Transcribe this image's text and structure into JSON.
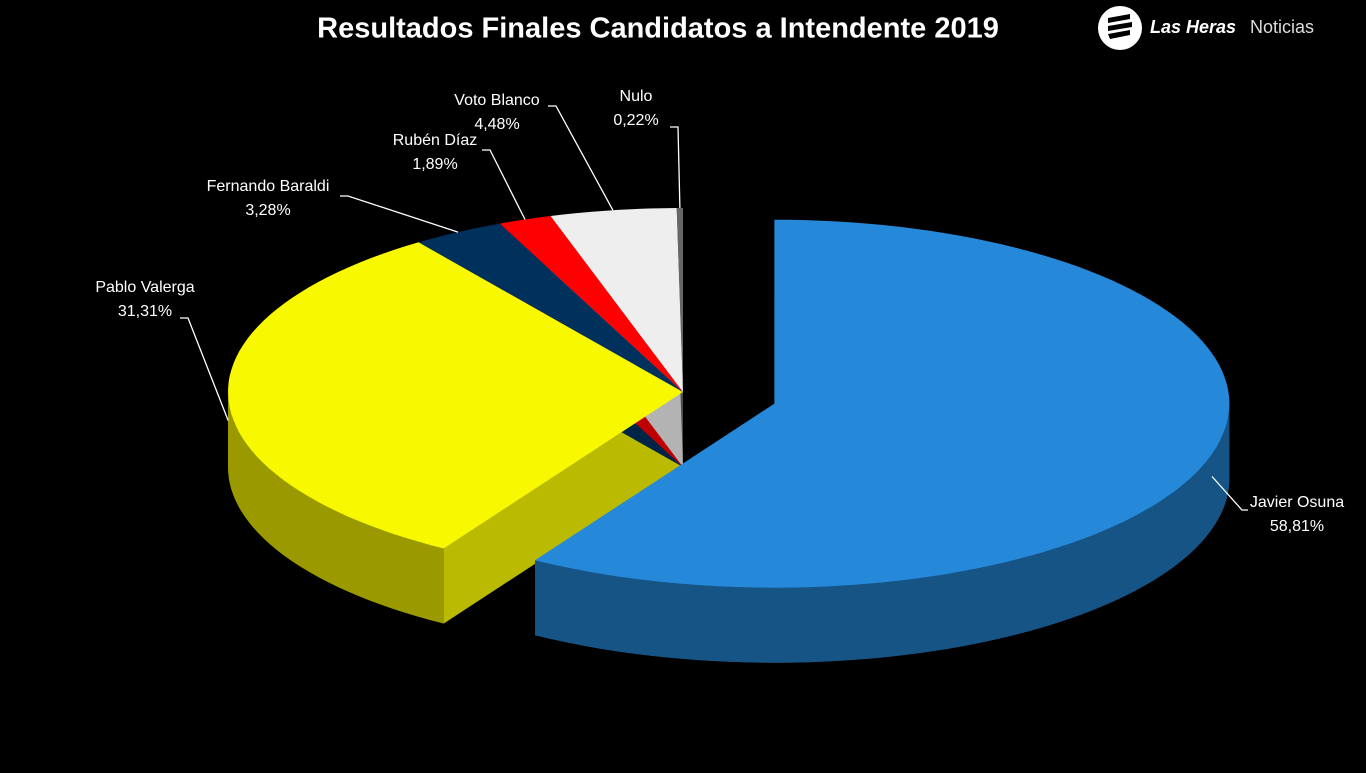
{
  "chart_data": {
    "type": "pie",
    "title": "Resultados Finales Candidatos a Intendente 2019",
    "categories": [
      "Javier Osuna",
      "Pablo Valerga",
      "Fernando Baraldi",
      "Rubén Díaz",
      "Voto Blanco",
      "Nulo"
    ],
    "values": [
      58.81,
      31.31,
      3.28,
      1.89,
      4.48,
      0.22
    ],
    "value_labels": [
      "58,81%",
      "31,31%",
      "3,28%",
      "1,89%",
      "4,48%",
      "0,22%"
    ],
    "colors": [
      "#2588d8",
      "#f8f800",
      "#00305c",
      "#ff0000",
      "#eeeeee",
      "#666666"
    ]
  },
  "logo": {
    "brand": "Las Heras",
    "section": "Noticias"
  }
}
